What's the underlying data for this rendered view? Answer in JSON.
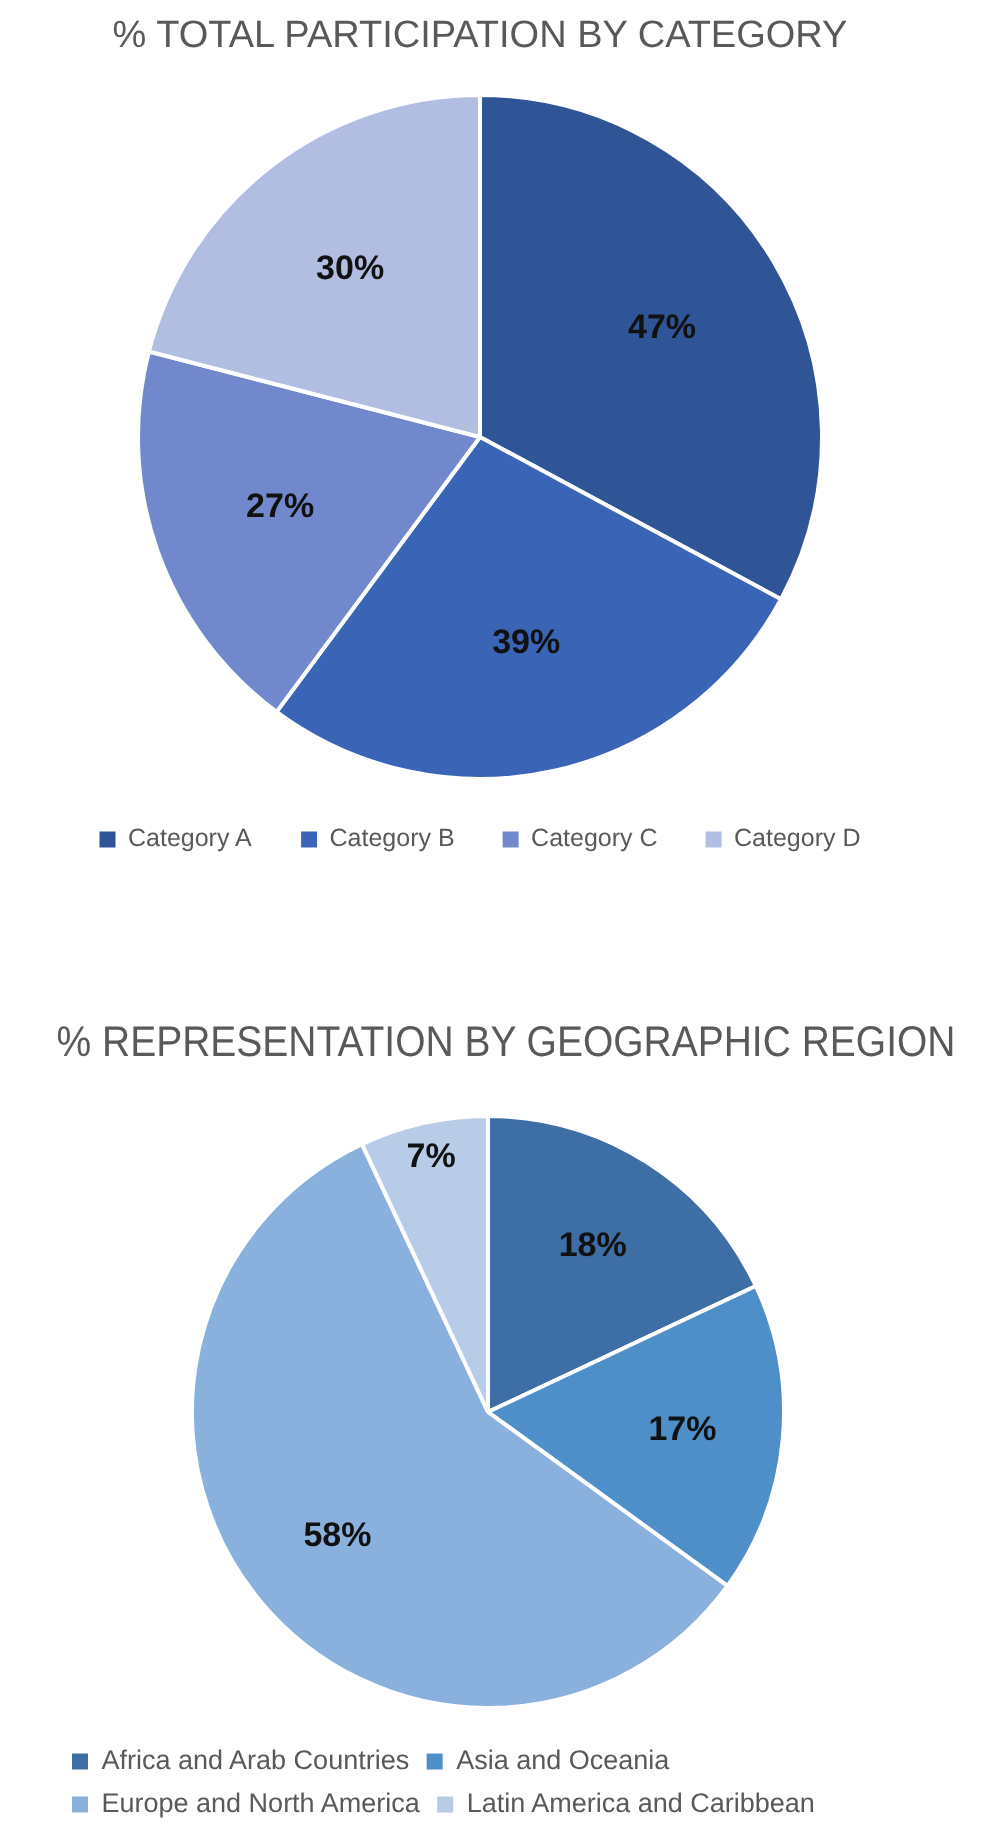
{
  "chart_data": [
    {
      "type": "pie",
      "title": "% TOTAL PARTICIPATION BY CATEGORY",
      "categories": [
        "Category A",
        "Category B",
        "Category C",
        "Category D"
      ],
      "values": [
        47,
        39,
        27,
        30
      ],
      "colors": [
        "#2f5597",
        "#3a65b6",
        "#7189cc",
        "#b2bde2"
      ],
      "value_labels": [
        "47%",
        "39%",
        "27%",
        "30%"
      ],
      "legend": "bottom"
    },
    {
      "type": "pie",
      "title": "% REPRESENTATION BY GEOGRAPHIC REGION",
      "categories": [
        "Africa and Arab Countries",
        "Asia and Oceania",
        "Europe and North America",
        "Latin America and Caribbean"
      ],
      "values": [
        18,
        17,
        58,
        7
      ],
      "colors": [
        "#3d6ea6",
        "#4e8fca",
        "#8ab0dd",
        "#b8cce8"
      ],
      "value_labels": [
        "18%",
        "17%",
        "58%",
        "7%"
      ],
      "legend": "bottom"
    }
  ]
}
